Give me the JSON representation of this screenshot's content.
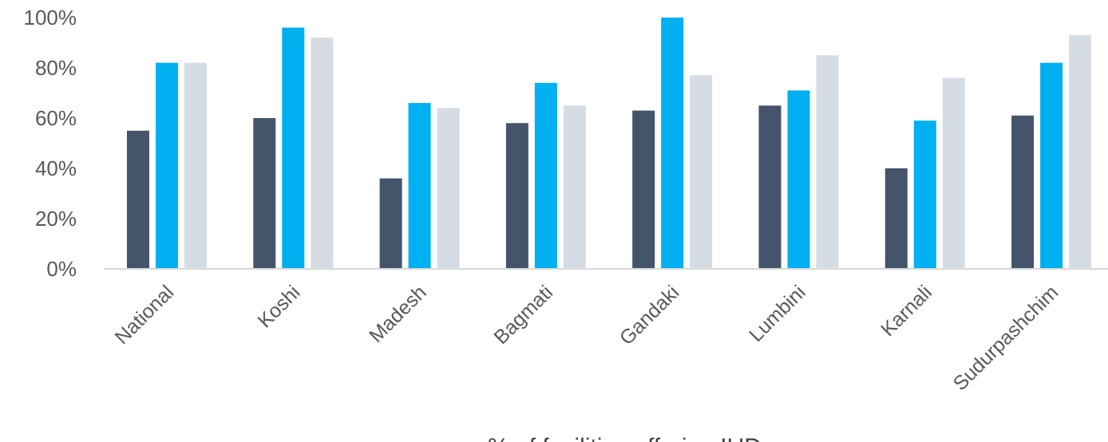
{
  "chart_data": {
    "type": "bar",
    "categories": [
      "National",
      "Koshi",
      "Madesh",
      "Bagmati",
      "Gandaki",
      "Lumbini",
      "Karnali",
      "Sudurpashchim"
    ],
    "series": [
      {
        "values": [
          55,
          60,
          36,
          58,
          63,
          65,
          40,
          61
        ],
        "color": "#44546a"
      },
      {
        "values": [
          82,
          96,
          66,
          74,
          100,
          71,
          59,
          82
        ],
        "color": "#00b0f0"
      },
      {
        "values": [
          82,
          92,
          64,
          65,
          77,
          85,
          76,
          93
        ],
        "color": "#d6dce4"
      }
    ],
    "yticks": [
      "0%",
      "20%",
      "40%",
      "60%",
      "80%",
      "100%"
    ],
    "ylim": [
      0,
      100
    ],
    "xlabel": "% of facilities offering IUDs",
    "ylabel": "",
    "title": "",
    "grid": false,
    "legend": "none"
  }
}
